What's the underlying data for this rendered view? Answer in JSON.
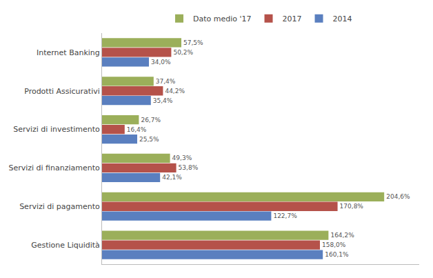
{
  "chart_data": {
    "type": "bar",
    "orientation": "horizontal",
    "categories": [
      "Gestione Liquidità",
      "Servizi di pagamento",
      "Servizi di finanziamento",
      "Servizi di investimento",
      "Prodotti Assicurativi",
      "Internet Banking"
    ],
    "series": [
      {
        "name": "Dato medio '17",
        "color": "#9baf5a",
        "values": [
          164.2,
          204.6,
          49.3,
          26.7,
          37.4,
          57.5
        ],
        "value_labels": [
          "164,2%",
          "204,6%",
          "49,3%",
          "26,7%",
          "37,4%",
          "57,5%"
        ]
      },
      {
        "name": "2017",
        "color": "#b5524a",
        "values": [
          158.0,
          170.8,
          53.8,
          16.4,
          44.2,
          50.2
        ],
        "value_labels": [
          "158,0%",
          "170,8%",
          "53,8%",
          "16,4%",
          "44,2%",
          "50,2%"
        ]
      },
      {
        "name": "2014",
        "color": "#5a7fbf",
        "values": [
          160.1,
          122.7,
          42.1,
          25.5,
          35.4,
          34.0
        ],
        "value_labels": [
          "160,1%",
          "122,7%",
          "42,1%",
          "25,5%",
          "35,4%",
          "34,0%"
        ]
      }
    ],
    "xlim": [
      0,
      230
    ],
    "tick_labels": "y",
    "grid": false,
    "legend": "top",
    "data_labels": true
  }
}
